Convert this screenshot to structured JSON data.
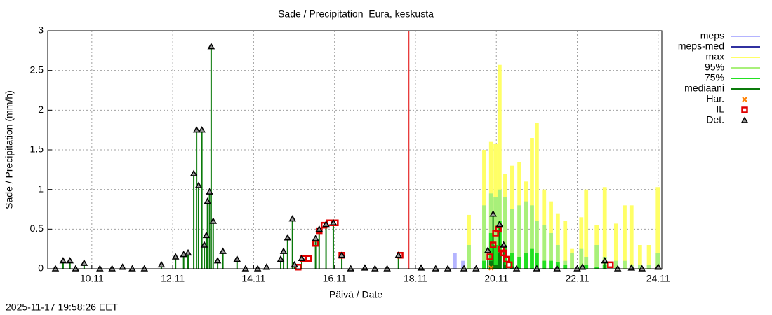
{
  "chart_data": {
    "type": "precipitation",
    "title": "Sade / Precipitation  Eura, keskusta",
    "x_label": "Päivä / Date",
    "y_label": "Sade / Precipitation (mm/h)",
    "timestamp": "2025-11-17 19:58:26 EET",
    "xlim": [
      8.91,
      24.09
    ],
    "ylim": [
      0,
      3
    ],
    "xticks": [
      {
        "value": 10,
        "label": "10.11"
      },
      {
        "value": 12,
        "label": "12.11"
      },
      {
        "value": 14,
        "label": "14.11"
      },
      {
        "value": 16,
        "label": "16.11"
      },
      {
        "value": 18,
        "label": "18.11"
      },
      {
        "value": 20,
        "label": "20.11"
      },
      {
        "value": 22,
        "label": "22.11"
      },
      {
        "value": 24,
        "label": "24.11"
      }
    ],
    "yticks": [
      0,
      0.5,
      1,
      1.5,
      2,
      2.5,
      3
    ],
    "grid": true,
    "now_x": 17.84,
    "now_color": "#e00000",
    "series": [
      {
        "name": "meps",
        "color": "#b4b4ff",
        "style": "bars",
        "x": [
          18.97,
          19.18
        ],
        "values": [
          0.2,
          0.1
        ]
      },
      {
        "name": "meps-med",
        "color": "#3030a0",
        "style": "bars",
        "x": [],
        "values": []
      },
      {
        "name": "max",
        "color": "#ffff66",
        "style": "bars",
        "x": [
          19.32,
          19.7,
          19.87,
          19.98,
          20.08,
          20.22,
          20.39,
          20.57,
          20.74,
          20.88,
          21.0,
          21.18,
          21.35,
          21.52,
          21.7,
          21.87,
          22.1,
          22.22,
          22.48,
          22.68,
          22.96,
          23.17,
          23.34,
          23.55,
          23.77,
          23.99
        ],
        "values": [
          0.68,
          1.5,
          1.6,
          1.58,
          2.57,
          1.2,
          1.3,
          1.35,
          1.1,
          1.65,
          1.84,
          1.0,
          0.85,
          0.7,
          0.6,
          0.25,
          0.65,
          1.0,
          0.55,
          1.03,
          0.57,
          0.8,
          0.8,
          0.3,
          0.3,
          1.03
        ]
      },
      {
        "name": "95%",
        "color": "#a8f07a",
        "style": "bars",
        "x": [
          19.32,
          19.7,
          19.87,
          19.98,
          20.08,
          20.22,
          20.39,
          20.57,
          20.74,
          20.88,
          21.0,
          21.18,
          21.35,
          21.52,
          21.7,
          21.87,
          22.1,
          22.22,
          22.48,
          22.68,
          22.96,
          23.17,
          23.34,
          23.55,
          23.77,
          23.99
        ],
        "values": [
          0.3,
          0.8,
          0.95,
          0.9,
          1.0,
          0.9,
          0.75,
          0.8,
          0.85,
          0.8,
          0.6,
          0.55,
          0.45,
          0.3,
          0.1,
          0.2,
          0.25,
          0.15,
          0.3,
          0.15,
          0.1,
          0.1,
          0.05,
          0.05,
          0.05,
          0.2
        ]
      },
      {
        "name": "75%",
        "color": "#22e022",
        "style": "bars",
        "x": [
          19.7,
          19.87,
          19.98,
          20.08,
          20.22,
          20.39,
          20.57,
          20.74,
          20.88,
          21.0,
          21.18,
          21.35,
          21.52,
          21.7,
          22.1,
          22.22,
          22.48,
          22.68,
          23.99
        ],
        "values": [
          0.1,
          0.45,
          0.3,
          0.6,
          0.3,
          0.2,
          0.15,
          0.2,
          0.25,
          0.2,
          0.1,
          0.1,
          0.08,
          0.05,
          0.03,
          0.05,
          0.02,
          0.05,
          0.02
        ]
      },
      {
        "name": "mediaani",
        "color": "#0a7a0a",
        "style": "bars",
        "x": [
          19.87,
          19.98,
          20.08,
          20.22,
          20.39
        ],
        "values": [
          0.1,
          0.05,
          0.2,
          0.05,
          0.03
        ]
      },
      {
        "name": "Har.",
        "color": "#ff8000",
        "style": "cross",
        "x": [
          19.87
        ],
        "values": [
          0.01
        ]
      },
      {
        "name": "IL",
        "color": "#e00000",
        "style": "square",
        "x": [
          15.1,
          15.22,
          15.36,
          15.53,
          15.62,
          15.74,
          15.88,
          16.02,
          16.18,
          17.62,
          19.84,
          19.92,
          19.98,
          20.05,
          20.12,
          20.18,
          20.25,
          20.32,
          22.82
        ],
        "values": [
          0.02,
          0.13,
          0.13,
          0.32,
          0.48,
          0.55,
          0.58,
          0.58,
          0.17,
          0.17,
          0.15,
          0.3,
          0.45,
          0.5,
          0.25,
          0.2,
          0.12,
          0.05,
          0.05
        ]
      },
      {
        "name": "Det.",
        "color": "#000000",
        "stem_color": "#0a7a0a",
        "style": "triangle",
        "x": [
          9.1,
          9.29,
          9.46,
          9.6,
          9.81,
          10.2,
          10.5,
          10.76,
          11.0,
          11.3,
          11.72,
          12.07,
          12.27,
          12.38,
          12.52,
          12.59,
          12.64,
          12.72,
          12.78,
          12.83,
          12.86,
          12.91,
          12.95,
          13.0,
          13.11,
          13.24,
          13.59,
          13.8,
          14.1,
          14.32,
          14.67,
          14.74,
          14.84,
          14.96,
          15.01,
          15.19,
          15.53,
          15.62,
          15.79,
          15.97,
          16.18,
          16.4,
          16.75,
          17.0,
          17.3,
          17.58,
          18.14,
          18.5,
          18.8,
          19.2,
          19.5,
          19.79,
          19.92,
          20.08,
          20.18,
          20.5,
          21.0,
          21.5,
          22.0,
          22.13,
          22.68,
          23.0,
          23.34,
          23.6,
          24.0
        ],
        "values": [
          0,
          0.1,
          0.1,
          0,
          0.07,
          0,
          0,
          0.02,
          0,
          0,
          0.05,
          0.15,
          0.18,
          0.2,
          1.2,
          1.75,
          1.05,
          1.75,
          0.3,
          0.42,
          0.85,
          0.97,
          2.8,
          0.6,
          0.1,
          0.22,
          0.12,
          0,
          0,
          0.02,
          0.12,
          0.22,
          0.39,
          0.63,
          0.05,
          0.13,
          0.38,
          0.5,
          0.56,
          0.58,
          0.17,
          0,
          0.01,
          0,
          0,
          0.17,
          0.01,
          0,
          0,
          0,
          0,
          0.23,
          0.69,
          0.56,
          0.3,
          0,
          0,
          0,
          0,
          0.02,
          0.1,
          0,
          0.01,
          0,
          0.02
        ]
      }
    ]
  }
}
